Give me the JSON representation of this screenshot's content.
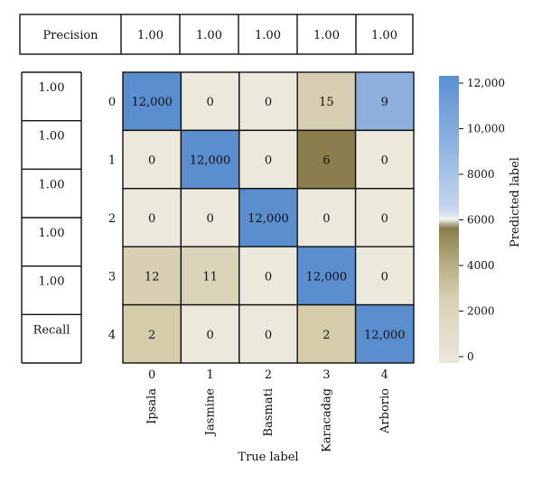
{
  "chart_data": {
    "type": "heatmap",
    "rows": [
      "0",
      "1",
      "2",
      "3",
      "4"
    ],
    "columns": [
      "0",
      "1",
      "2",
      "3",
      "4"
    ],
    "column_class_names": [
      "Ipsala",
      "Jasmine",
      "Basmati",
      "Karacadag",
      "Arborio"
    ],
    "cells": [
      [
        "12,000",
        "0",
        "0",
        "15",
        "9"
      ],
      [
        "0",
        "12,000",
        "0",
        "6",
        "0"
      ],
      [
        "0",
        "0",
        "12,000",
        "0",
        "0"
      ],
      [
        "12",
        "11",
        "0",
        "12,000",
        "0"
      ],
      [
        "2",
        "0",
        "0",
        "2",
        "12,000"
      ]
    ],
    "cell_colors": [
      [
        "#5b8ecf",
        "#ece8dc",
        "#ece8dc",
        "#d7ceb1",
        "#8fb0dc"
      ],
      [
        "#ece8dc",
        "#5b8ecf",
        "#ece8dc",
        "#8b7d4d",
        "#ece8dc"
      ],
      [
        "#ece8dc",
        "#ece8dc",
        "#5b8ecf",
        "#ece8dc",
        "#ece8dc"
      ],
      [
        "#d9d0b3",
        "#dcd4b9",
        "#ece8dc",
        "#5b8ecf",
        "#ece8dc"
      ],
      [
        "#d5cca9",
        "#ece8dc",
        "#ece8dc",
        "#d5cca9",
        "#5b8ecf"
      ]
    ],
    "precision": {
      "label": "Precision",
      "values": [
        "1.00",
        "1.00",
        "1.00",
        "1.00",
        "1.00"
      ]
    },
    "recall": {
      "label": "Recall",
      "values": [
        "1.00",
        "1.00",
        "1.00",
        "1.00",
        "1.00"
      ]
    },
    "xlabel": "True label",
    "colorbar": {
      "label": "Predicted label",
      "ticks": [
        "12,000",
        "10,000",
        "8000",
        "6000",
        "4000",
        "2000",
        "0"
      ],
      "range": [
        0,
        12000
      ]
    }
  }
}
